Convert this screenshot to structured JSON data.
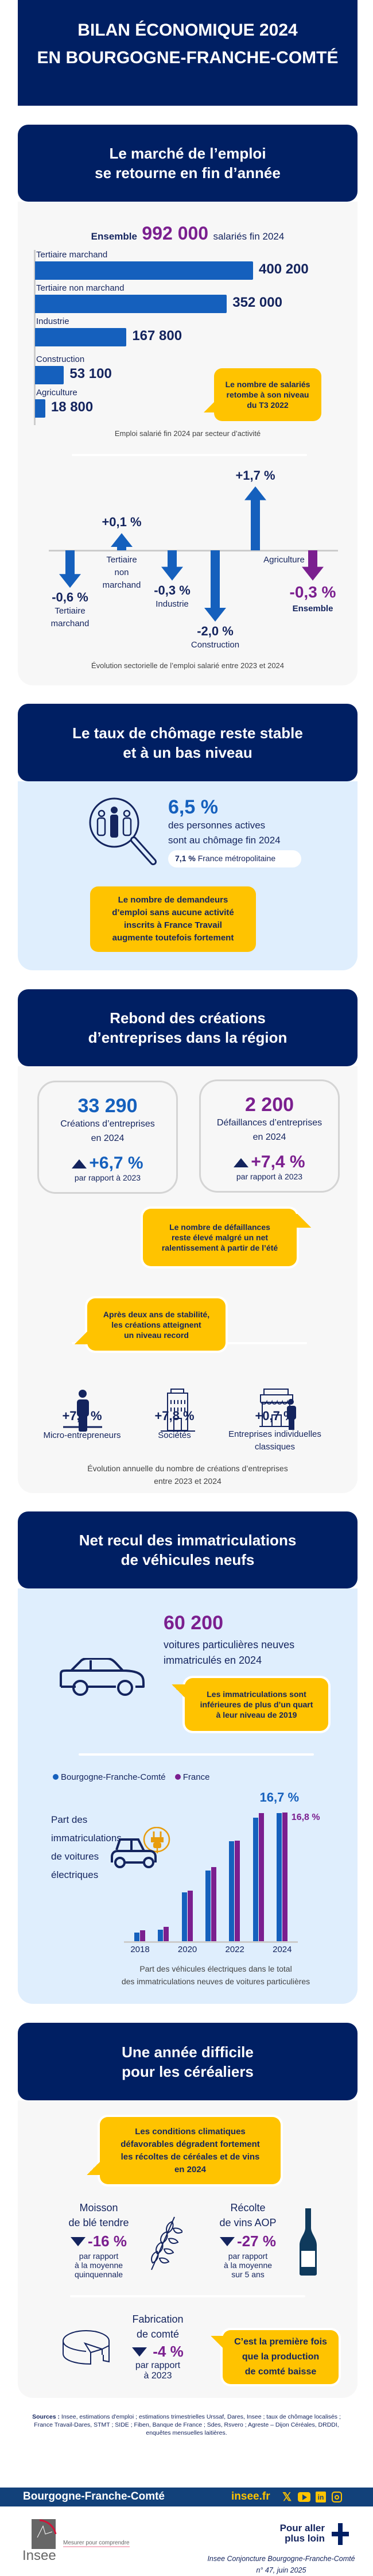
{
  "header": {
    "title_line1": "BILAN ÉCONOMIQUE 2024",
    "title_line2": "EN BOURGOGNE-FRANCHE-COMTÉ"
  },
  "emploi": {
    "title_line1": "Le marché de l’emploi",
    "title_line2": "se retourne en fin d’année",
    "ensemble_label": "Ensemble",
    "ensemble_value": "992 000",
    "ensemble_suffix": "salariés fin 2024",
    "callout": "Le nombre de salariés\nretombe à son niveau\ndu T3 2022"
  },
  "chomage": {
    "title_line1": "Le taux de chômage reste stable",
    "title_line2": "et à un bas niveau",
    "rate": "6,5 %",
    "rate_text": "des personnes actives\nsont au chômage fin 2024",
    "france_value": "7,1 %",
    "france_label": "France métropolitaine",
    "callout": "Le nombre de demandeurs\nd’emploi sans aucune activité\ninscrits à France Travail\naugmente toutefois fortement"
  },
  "entreprises": {
    "title_line1": "Rebond des créations",
    "title_line2": "d’entreprises dans la région",
    "creations": {
      "value": "33 290",
      "label": "Créations d’entreprises\nen 2024",
      "change": "+6,7 %",
      "ref": "par rapport à 2023"
    },
    "defaillances": {
      "value": "2 200",
      "label": "Défaillances d’entreprises\nen 2024",
      "change": "+7,4 %",
      "ref": "par rapport à 2023"
    },
    "callout_defaillances": "Le nombre de défaillances\nreste élevé malgré un net\nralentissement à partir de l’été",
    "callout_creations": "Après deux ans de stabilité,\nles créations atteignent\nun niveau record",
    "types": [
      {
        "value": "+7,6 %",
        "label": "Micro-entrepreneurs"
      },
      {
        "value": "+7,8 %",
        "label": "Sociétés"
      },
      {
        "value": "+0,7 %",
        "label": "Entreprises individuelles\nclassiques"
      }
    ],
    "caption": "Évolution annuelle du nombre de créations d’entreprises\nentre 2023 et 2024"
  },
  "vehicules": {
    "title_line1": "Net recul des immatriculations",
    "title_line2": "de véhicules neufs",
    "value": "60 200",
    "value_text": "voitures particulières neuves\nimmatriculés en 2024",
    "callout": "Les immatriculations sont\ninférieures de plus d’un quart\nà leur niveau de 2019",
    "ev_label": "Part des\nimmatriculations\nde voitures\nélectriques"
  },
  "cereales": {
    "title_line1": "Une année difficile",
    "title_line2": "pour les céréaliers",
    "callout": "Les conditions climatiques\ndéfavorables dégradent fortement\nles récoltes de céréales et de vins\nen 2024",
    "ble": {
      "label": "Moisson\nde blé tendre",
      "value": "-16 %",
      "ref": "par rapport\nà la moyenne\nquinquennale"
    },
    "vins": {
      "label": "Récolte\nde vins AOP",
      "value": "-27 %",
      "ref": "par rapport\nà la moyenne\nsur 5 ans"
    },
    "comte": {
      "label": "Fabrication\nde comté",
      "value": "-4 %",
      "ref": "par rapport\nà 2023"
    },
    "callout_comte": "C’est la première fois\nque la production\nde comté baisse"
  },
  "sources": {
    "label": "Sources :",
    "text": "Insee, estimations d'emploi ; estimations trimestrielles Urssaf, Dares, Insee ; taux de chômage localisés ; France Travail-Dares, STMT ; SIDE ; Fiben, Banque de France ; Sdes, Rsvero ; Agreste – Dijon Céréales, DRDDI, enquêtes mensuelles laitières."
  },
  "footer": {
    "region": "Bourgogne-Franche-Comté",
    "site": "insee.fr",
    "logo_text": "Insee",
    "tagline": "Mesurer pour comprendre",
    "more": "Pour aller\nplus loin",
    "publication": "Insee Conjoncture Bourgogne-Franche-Comté\nn° 47, juin 2025"
  },
  "colors": {
    "navy": "#001f63",
    "blue": "#1560bd",
    "purple": "#7b1f8f",
    "yellow": "#ffc300",
    "footer": "#12417a"
  },
  "chart_data": [
    {
      "type": "bar",
      "orientation": "horizontal",
      "title": "Emploi salarié fin 2024 par secteur d’activité",
      "categories": [
        "Tertiaire marchand",
        "Tertiaire non marchand",
        "Industrie",
        "Construction",
        "Agriculture"
      ],
      "values": [
        400200,
        352000,
        167800,
        53100,
        18800
      ],
      "value_labels": [
        "400 200",
        "352 000",
        "167 800",
        "53 100",
        "18 800"
      ]
    },
    {
      "type": "bar",
      "style": "arrows",
      "title": "Évolution sectorielle de l’emploi salarié entre 2023 et 2024",
      "categories": [
        "Tertiaire\nmarchand",
        "Tertiaire\nnon\nmarchand",
        "Industrie",
        "Construction",
        "Agriculture",
        "Ensemble"
      ],
      "values": [
        -0.6,
        0.1,
        -0.3,
        -2.0,
        1.7,
        -0.3
      ],
      "value_labels": [
        "-0,6 %",
        "+0,1 %",
        "-0,3 %",
        "-2,0 %",
        "+1,7 %",
        "-0,3 %"
      ],
      "unit": "%"
    },
    {
      "type": "bar",
      "title": "Part des véhicules électriques dans le total\ndes immatriculations neuves de voitures particulières",
      "x": [
        2018,
        2019,
        2020,
        2021,
        2022,
        2023,
        2024
      ],
      "tick_labels": [
        "2018",
        "2020",
        "2022",
        "2024"
      ],
      "series": [
        {
          "name": "Bourgogne-Franche-Comté",
          "values": [
            1.1,
            1.5,
            6.4,
            9.2,
            13.0,
            16.1,
            16.7
          ]
        },
        {
          "name": "France",
          "values": [
            1.4,
            1.9,
            6.6,
            9.7,
            13.1,
            16.7,
            16.8
          ]
        }
      ],
      "data_labels": {
        "bfc_2024": "16,7 %",
        "france_2024": "16,8 %"
      },
      "legend": "top-left",
      "ylabel": "%"
    }
  ]
}
